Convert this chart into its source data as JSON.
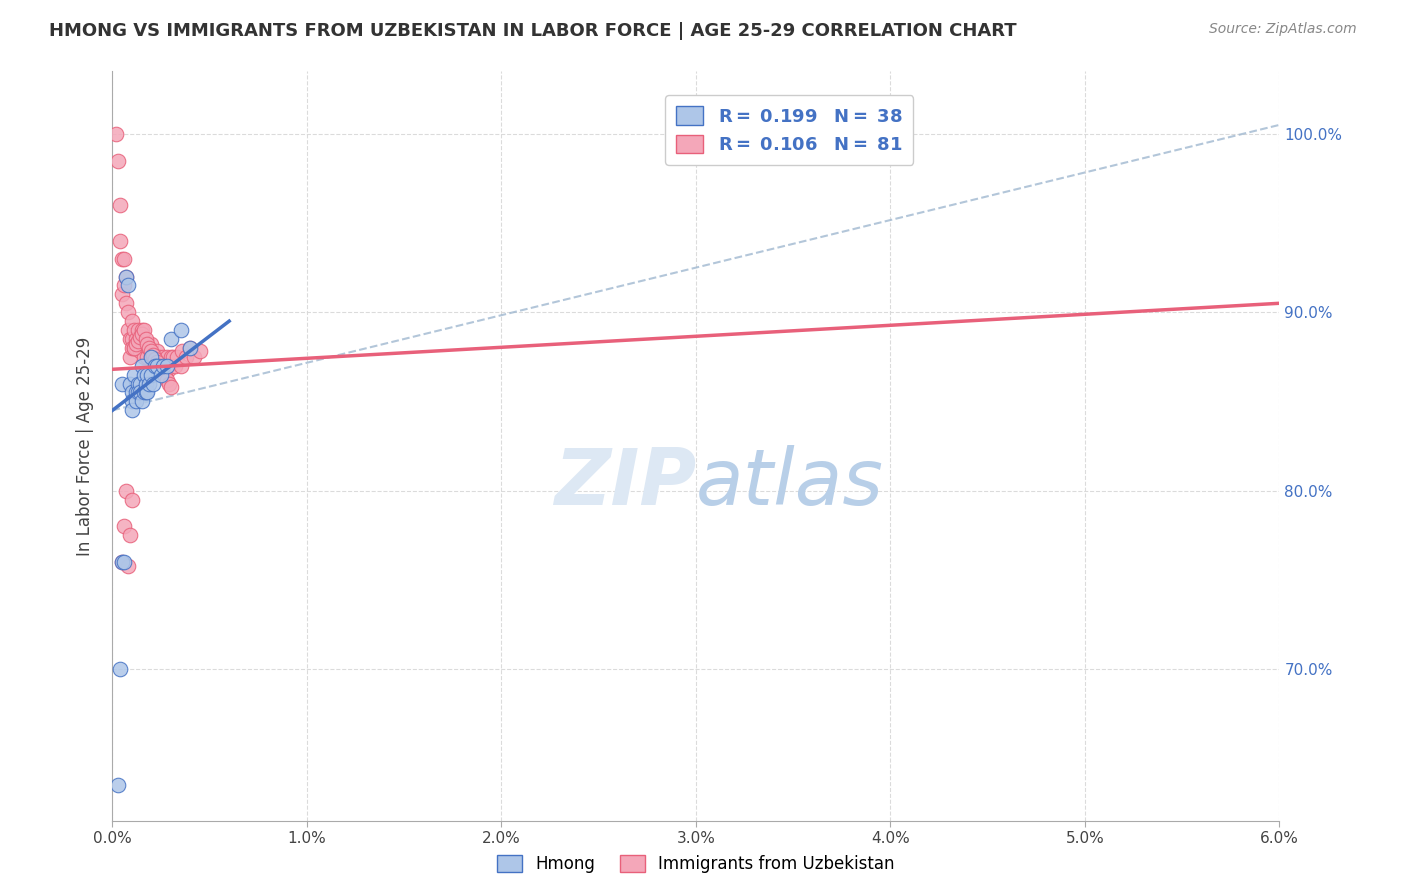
{
  "title": "HMONG VS IMMIGRANTS FROM UZBEKISTAN IN LABOR FORCE | AGE 25-29 CORRELATION CHART",
  "source": "Source: ZipAtlas.com",
  "ylabel": "In Labor Force | Age 25-29",
  "ylabel_ticks": [
    "70.0%",
    "80.0%",
    "90.0%",
    "100.0%"
  ],
  "xmin": 0.0,
  "xmax": 0.06,
  "ymin": 0.615,
  "ymax": 1.035,
  "ytick_positions": [
    0.7,
    0.8,
    0.9,
    1.0
  ],
  "xtick_positions": [
    0.0,
    0.01,
    0.02,
    0.03,
    0.04,
    0.05,
    0.06
  ],
  "xtick_labels": [
    "0.0%",
    "1.0%",
    "2.0%",
    "3.0%",
    "4.0%",
    "5.0%",
    "6.0%"
  ],
  "color_hmong_fill": "#aec6e8",
  "color_hmong_edge": "#4472c4",
  "color_uzbek_fill": "#f4a7b9",
  "color_uzbek_edge": "#e8607a",
  "color_hmong_line": "#4472c4",
  "color_uzbek_line": "#e8607a",
  "color_dashed": "#a0b8d0",
  "background_color": "#ffffff",
  "grid_color": "#d8d8d8",
  "hmong_x": [
    0.0005,
    0.0007,
    0.0008,
    0.0009,
    0.001,
    0.001,
    0.001,
    0.0011,
    0.0012,
    0.0012,
    0.0013,
    0.0013,
    0.0014,
    0.0014,
    0.0015,
    0.0015,
    0.0016,
    0.0016,
    0.0017,
    0.0017,
    0.0018,
    0.0018,
    0.0019,
    0.002,
    0.002,
    0.0021,
    0.0022,
    0.0023,
    0.0025,
    0.0026,
    0.0028,
    0.003,
    0.0035,
    0.004,
    0.0005,
    0.0006,
    0.0004,
    0.0003
  ],
  "hmong_y": [
    0.86,
    0.92,
    0.915,
    0.86,
    0.855,
    0.85,
    0.845,
    0.865,
    0.855,
    0.85,
    0.86,
    0.855,
    0.86,
    0.855,
    0.87,
    0.85,
    0.865,
    0.855,
    0.86,
    0.855,
    0.865,
    0.855,
    0.86,
    0.875,
    0.865,
    0.86,
    0.87,
    0.87,
    0.865,
    0.87,
    0.87,
    0.885,
    0.89,
    0.88,
    0.76,
    0.76,
    0.7,
    0.635
  ],
  "uzbek_x": [
    0.0002,
    0.0003,
    0.0004,
    0.0004,
    0.0005,
    0.0005,
    0.0006,
    0.0006,
    0.0007,
    0.0007,
    0.0008,
    0.0008,
    0.0009,
    0.0009,
    0.001,
    0.001,
    0.001,
    0.0011,
    0.0011,
    0.0012,
    0.0012,
    0.0013,
    0.0013,
    0.0014,
    0.0014,
    0.0015,
    0.0015,
    0.0016,
    0.0016,
    0.0017,
    0.0018,
    0.0018,
    0.0019,
    0.002,
    0.002,
    0.0021,
    0.0022,
    0.0023,
    0.0024,
    0.0025,
    0.0026,
    0.0027,
    0.0028,
    0.0029,
    0.003,
    0.0031,
    0.0032,
    0.0033,
    0.0035,
    0.0036,
    0.0038,
    0.004,
    0.0042,
    0.0045,
    0.0005,
    0.0006,
    0.0007,
    0.0008,
    0.0009,
    0.001,
    0.0011,
    0.0012,
    0.0013,
    0.0014,
    0.0015,
    0.0016,
    0.0017,
    0.0018,
    0.0019,
    0.002,
    0.0021,
    0.0022,
    0.0023,
    0.0024,
    0.0025,
    0.0026,
    0.0027,
    0.0028,
    0.0029,
    0.003
  ],
  "uzbek_y": [
    1.0,
    0.985,
    0.96,
    0.94,
    0.93,
    0.91,
    0.93,
    0.915,
    0.92,
    0.905,
    0.9,
    0.89,
    0.885,
    0.875,
    0.895,
    0.885,
    0.88,
    0.89,
    0.88,
    0.885,
    0.88,
    0.89,
    0.882,
    0.885,
    0.878,
    0.89,
    0.882,
    0.88,
    0.875,
    0.882,
    0.88,
    0.875,
    0.88,
    0.875,
    0.882,
    0.875,
    0.875,
    0.878,
    0.875,
    0.87,
    0.875,
    0.87,
    0.875,
    0.868,
    0.875,
    0.875,
    0.87,
    0.875,
    0.87,
    0.878,
    0.875,
    0.88,
    0.875,
    0.878,
    0.76,
    0.78,
    0.8,
    0.758,
    0.775,
    0.795,
    0.88,
    0.882,
    0.884,
    0.886,
    0.888,
    0.89,
    0.885,
    0.882,
    0.88,
    0.878,
    0.876,
    0.874,
    0.872,
    0.87,
    0.868,
    0.866,
    0.864,
    0.862,
    0.86,
    0.858
  ],
  "hmong_line_x": [
    0.0,
    0.006
  ],
  "hmong_line_y": [
    0.845,
    0.895
  ],
  "uzbek_line_x": [
    0.0,
    0.06
  ],
  "uzbek_line_y": [
    0.868,
    0.905
  ],
  "dashed_line_x": [
    0.0,
    0.06
  ],
  "dashed_line_y": [
    0.845,
    1.005
  ]
}
